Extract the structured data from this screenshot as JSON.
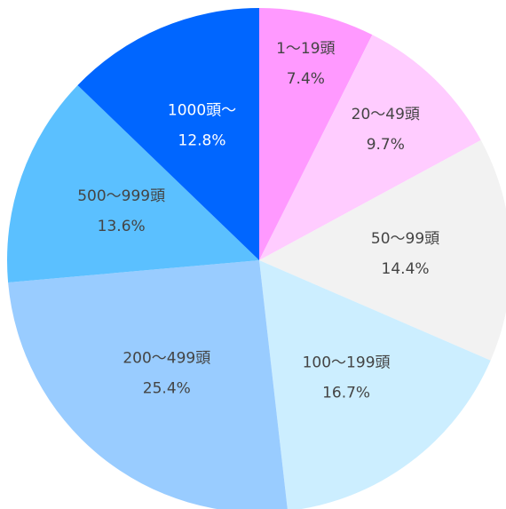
{
  "chart_data": {
    "type": "pie",
    "categories": [
      "1～19頭",
      "20～49頭",
      "50～99頭",
      "100～199頭",
      "200～499頭",
      "500～999頭",
      "1000頭～"
    ],
    "values": [
      7.4,
      9.7,
      14.4,
      16.7,
      25.4,
      13.6,
      12.8
    ],
    "value_labels": [
      "7.4%",
      "9.7%",
      "14.4%",
      "16.7%",
      "25.4%",
      "13.6%",
      "12.8%"
    ],
    "colors": [
      "#ff99ff",
      "#ffccff",
      "#f2f2f2",
      "#cceeff",
      "#99ccff",
      "#5bc0ff",
      "#0066ff"
    ]
  }
}
